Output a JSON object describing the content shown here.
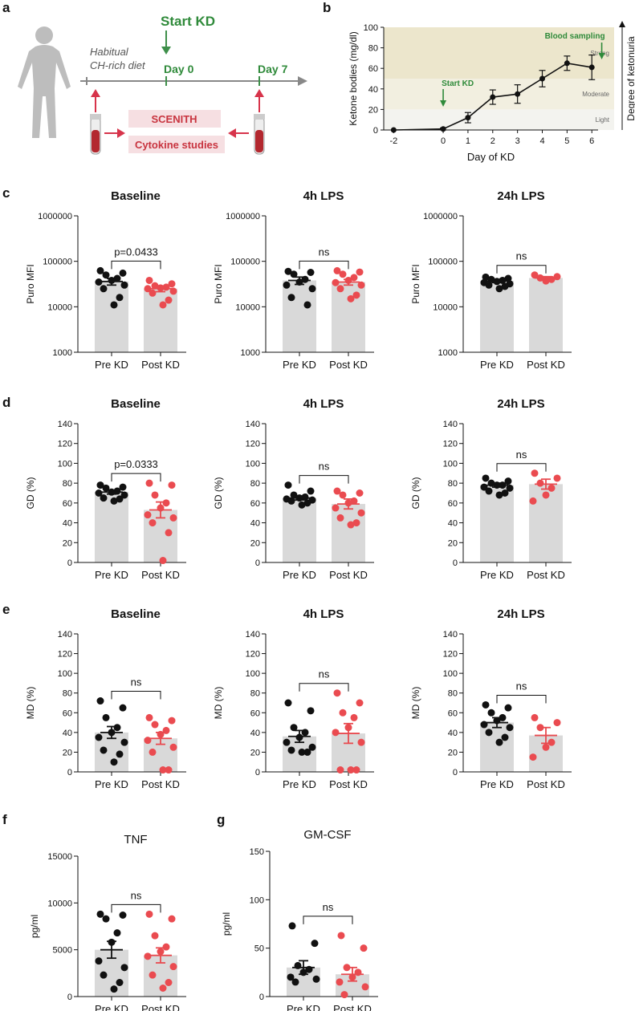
{
  "panel_labels": {
    "a": "a",
    "b": "b",
    "c": "c",
    "d": "d",
    "e": "e",
    "f": "f",
    "g": "g"
  },
  "schematic": {
    "start_kd": "Start KD",
    "diet_line1": "Habitual",
    "diet_line2": "CH-rich diet",
    "day0": "Day 0",
    "day7": "Day 7",
    "scenith": "SCENITH",
    "cytokine": "Cytokine studies",
    "colors": {
      "green": "#3e8f4a",
      "red": "#d7344b",
      "arrow": "#888888"
    }
  },
  "chart_data": [
    {
      "id": "b",
      "type": "line",
      "xlabel": "Day of KD",
      "ylabel": "Ketone bodies (mg/dl)",
      "right_label": "Degree of ketonuria",
      "x": [
        -2,
        0,
        1,
        2,
        3,
        4,
        5,
        6
      ],
      "x_tick_labels": [
        "-2",
        "0",
        "1",
        "2",
        "3",
        "4",
        "5",
        "6"
      ],
      "y": [
        0,
        1,
        12,
        32,
        35,
        50,
        65,
        61
      ],
      "err": [
        0,
        1,
        5,
        7,
        9,
        8,
        7,
        12
      ],
      "y_ticks": [
        "0",
        "20",
        "40",
        "60",
        "80",
        "100"
      ],
      "ylim": [
        0,
        100
      ],
      "bands": [
        {
          "label": "Strong",
          "from": 50,
          "to": 100,
          "color": "#ece6cc"
        },
        {
          "label": "Moderate",
          "from": 20,
          "to": 50,
          "color": "#f2efe0"
        },
        {
          "label": "Light",
          "from": 0,
          "to": 20,
          "color": "#f3f3ef"
        }
      ],
      "annotations": [
        {
          "text": "Start KD",
          "x": 0
        },
        {
          "text": "Blood sampling",
          "x": 6.4
        }
      ]
    },
    {
      "id": "c1",
      "type": "bar",
      "panel": "c",
      "title": "Baseline",
      "ylabel": "Puro MFI",
      "scale": "log",
      "ylim": [
        1000,
        1000000
      ],
      "y_ticks": [
        "1000",
        "10000",
        "100000",
        "1000000"
      ],
      "categories": [
        "Pre KD",
        "Post KD"
      ],
      "means": [
        36000,
        25000
      ],
      "sems": [
        6000,
        3500
      ],
      "points": [
        [
          62000,
          55000,
          50000,
          42000,
          38000,
          35000,
          30000,
          25000,
          16000,
          11000
        ],
        [
          38000,
          32000,
          29000,
          27000,
          26000,
          25000,
          22000,
          20000,
          14000,
          11000
        ]
      ],
      "significance": "p=0.0433"
    },
    {
      "id": "c2",
      "type": "bar",
      "panel": "c",
      "title": "4h LPS",
      "ylabel": "Puro MFI",
      "scale": "log",
      "ylim": [
        1000,
        1000000
      ],
      "y_ticks": [
        "1000",
        "10000",
        "100000",
        "1000000"
      ],
      "categories": [
        "Pre KD",
        "Post KD"
      ],
      "means": [
        38000,
        35000
      ],
      "sems": [
        7000,
        5000
      ],
      "points": [
        [
          60000,
          57000,
          52000,
          40000,
          35000,
          30000,
          25000,
          16000,
          11000
        ],
        [
          62000,
          58000,
          52000,
          44000,
          38000,
          34000,
          30000,
          25000,
          18000,
          15000
        ]
      ],
      "significance": "ns"
    },
    {
      "id": "c3",
      "type": "bar",
      "panel": "c",
      "title": "24h LPS",
      "ylabel": "Puro MFI",
      "scale": "log",
      "ylim": [
        1000,
        1000000
      ],
      "y_ticks": [
        "1000",
        "10000",
        "100000",
        "1000000"
      ],
      "categories": [
        "Pre KD",
        "Post KD"
      ],
      "means": [
        37000,
        43000
      ],
      "sems": [
        3000,
        3000
      ],
      "points": [
        [
          45000,
          42000,
          40000,
          38000,
          36000,
          34000,
          32000,
          30000,
          28000,
          25000
        ],
        [
          50000,
          46000,
          43000,
          40000,
          37000
        ]
      ],
      "significance": "ns"
    },
    {
      "id": "d1",
      "type": "bar",
      "panel": "d",
      "title": "Baseline",
      "ylabel": "GD (%)",
      "scale": "linear",
      "ylim": [
        0,
        140
      ],
      "y_ticks": [
        "0",
        "20",
        "40",
        "60",
        "80",
        "100",
        "120",
        "140"
      ],
      "categories": [
        "Pre KD",
        "Post KD"
      ],
      "means": [
        71,
        53
      ],
      "sems": [
        2,
        8
      ],
      "points": [
        [
          78,
          76,
          75,
          72,
          71,
          70,
          68,
          65,
          64,
          62
        ],
        [
          80,
          78,
          68,
          60,
          55,
          48,
          45,
          40,
          30,
          2
        ]
      ],
      "significance": "p=0.0333"
    },
    {
      "id": "d2",
      "type": "bar",
      "panel": "d",
      "title": "4h LPS",
      "ylabel": "GD (%)",
      "scale": "linear",
      "ylim": [
        0,
        140
      ],
      "y_ticks": [
        "0",
        "20",
        "40",
        "60",
        "80",
        "100",
        "120",
        "140"
      ],
      "categories": [
        "Pre KD",
        "Post KD"
      ],
      "means": [
        65,
        59
      ],
      "sems": [
        2,
        5
      ],
      "points": [
        [
          78,
          72,
          68,
          66,
          65,
          64,
          63,
          62,
          60,
          58
        ],
        [
          72,
          70,
          68,
          62,
          60,
          55,
          50,
          45,
          40,
          38
        ]
      ],
      "significance": "ns"
    },
    {
      "id": "d3",
      "type": "bar",
      "panel": "d",
      "title": "24h LPS",
      "ylabel": "GD (%)",
      "scale": "linear",
      "ylim": [
        0,
        140
      ],
      "y_ticks": [
        "0",
        "20",
        "40",
        "60",
        "80",
        "100",
        "120",
        "140"
      ],
      "categories": [
        "Pre KD",
        "Post KD"
      ],
      "means": [
        78,
        79
      ],
      "sems": [
        2,
        5
      ],
      "points": [
        [
          85,
          82,
          80,
          78,
          78,
          76,
          75,
          72,
          70,
          68
        ],
        [
          90,
          85,
          80,
          75,
          68,
          62
        ]
      ],
      "significance": "ns"
    },
    {
      "id": "e1",
      "type": "bar",
      "panel": "e",
      "title": "Baseline",
      "ylabel": "MD (%)",
      "scale": "linear",
      "ylim": [
        0,
        140
      ],
      "y_ticks": [
        "0",
        "20",
        "40",
        "60",
        "80",
        "100",
        "120",
        "140"
      ],
      "categories": [
        "Pre KD",
        "Post KD"
      ],
      "means": [
        40,
        34
      ],
      "sems": [
        6,
        6
      ],
      "points": [
        [
          72,
          65,
          55,
          45,
          40,
          35,
          30,
          22,
          18,
          10
        ],
        [
          55,
          52,
          48,
          42,
          38,
          32,
          25,
          20,
          2,
          2
        ]
      ],
      "significance": "ns"
    },
    {
      "id": "e2",
      "type": "bar",
      "panel": "e",
      "title": "4h LPS",
      "ylabel": "MD (%)",
      "scale": "linear",
      "ylim": [
        0,
        140
      ],
      "y_ticks": [
        "0",
        "20",
        "40",
        "60",
        "80",
        "100",
        "120",
        "140"
      ],
      "categories": [
        "Pre KD",
        "Post KD"
      ],
      "means": [
        36,
        39
      ],
      "sems": [
        6,
        10
      ],
      "points": [
        [
          70,
          62,
          45,
          40,
          35,
          30,
          25,
          22,
          20,
          20
        ],
        [
          80,
          70,
          60,
          55,
          45,
          40,
          30,
          2,
          2,
          2
        ]
      ],
      "significance": "ns"
    },
    {
      "id": "e3",
      "type": "bar",
      "panel": "e",
      "title": "24h LPS",
      "ylabel": "MD (%)",
      "scale": "linear",
      "ylim": [
        0,
        140
      ],
      "y_ticks": [
        "0",
        "20",
        "40",
        "60",
        "80",
        "100",
        "120",
        "140"
      ],
      "categories": [
        "Pre KD",
        "Post KD"
      ],
      "means": [
        50,
        37
      ],
      "sems": [
        5,
        8
      ],
      "points": [
        [
          68,
          65,
          60,
          55,
          52,
          48,
          45,
          40,
          35,
          30
        ],
        [
          55,
          50,
          45,
          30,
          25,
          15
        ]
      ],
      "significance": "ns"
    },
    {
      "id": "f",
      "type": "bar",
      "panel": "f",
      "title": "TNF",
      "ylabel": "pg/ml",
      "scale": "linear",
      "title_bold": false,
      "ylim": [
        0,
        15000
      ],
      "y_ticks": [
        "0",
        "5000",
        "10000",
        "15000"
      ],
      "categories": [
        "Pre KD",
        "Post KD"
      ],
      "means": [
        5000,
        4400
      ],
      "sems": [
        900,
        800
      ],
      "points": [
        [
          8800,
          8700,
          8300,
          6800,
          5800,
          3800,
          3100,
          2300,
          1500,
          800
        ],
        [
          8800,
          8300,
          6500,
          5300,
          4800,
          4300,
          3200,
          2300,
          1500,
          900
        ]
      ],
      "significance": "ns"
    },
    {
      "id": "g",
      "type": "bar",
      "panel": "g",
      "title": "GM-CSF",
      "ylabel": "pg/ml",
      "scale": "linear",
      "title_bold": false,
      "ylim": [
        0,
        150
      ],
      "y_ticks": [
        "0",
        "50",
        "100",
        "150"
      ],
      "categories": [
        "Pre KD",
        "Post KD"
      ],
      "means": [
        30,
        23
      ],
      "sems": [
        7,
        7
      ],
      "points": [
        [
          73,
          55,
          32,
          28,
          25,
          20,
          18,
          15
        ],
        [
          63,
          50,
          30,
          25,
          20,
          15,
          10,
          2
        ]
      ],
      "significance": "ns"
    }
  ]
}
